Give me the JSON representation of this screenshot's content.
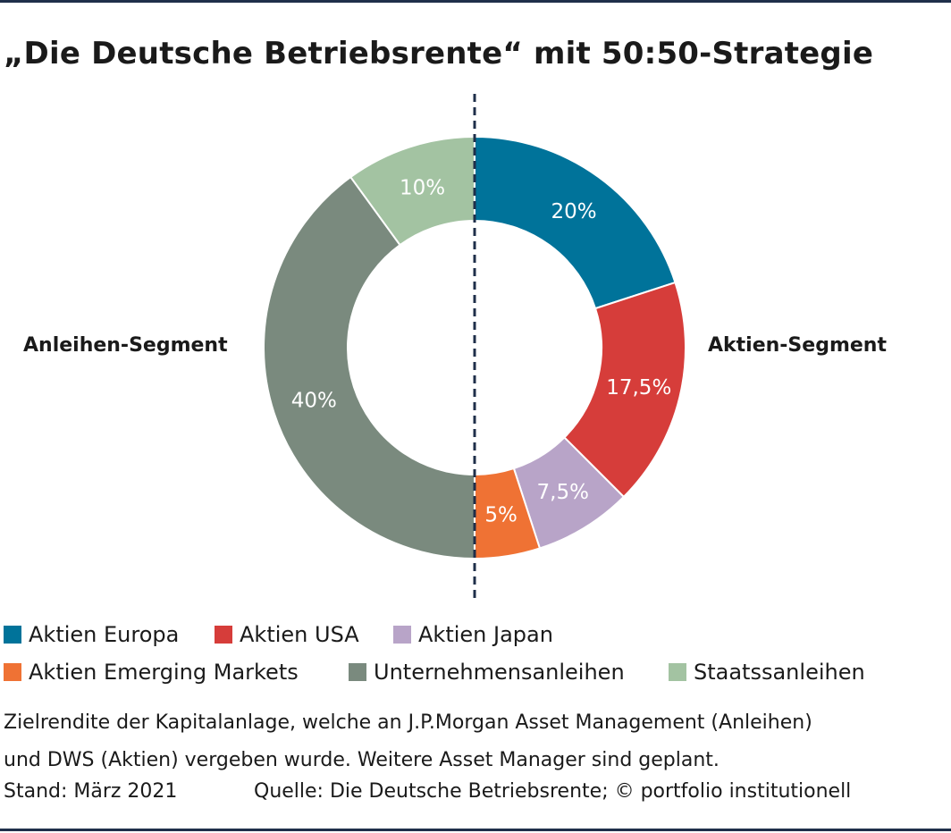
{
  "title": "„Die Deutsche Betriebsrente“ mit 50:50-Strategie",
  "segments": {
    "left": "Anleihen-Segment",
    "right": "Aktien-Segment"
  },
  "chart_data": {
    "type": "pie",
    "donut": true,
    "slices": [
      {
        "name": "Aktien Europa",
        "value": 20,
        "label": "20%",
        "color": "#00739a"
      },
      {
        "name": "Aktien USA",
        "value": 17.5,
        "label": "17,5%",
        "color": "#d63d3a"
      },
      {
        "name": "Aktien Japan",
        "value": 7.5,
        "label": "7,5%",
        "color": "#b8a4c8"
      },
      {
        "name": "Aktien Emerging Markets",
        "value": 5,
        "label": "5%",
        "color": "#ef7234"
      },
      {
        "name": "Unternehmensanleihen",
        "value": 40,
        "label": "40%",
        "color": "#7a8a7e"
      },
      {
        "name": "Staatssanleihen",
        "value": 10,
        "label": "10%",
        "color": "#a3c3a2"
      }
    ],
    "legend_position": "bottom",
    "divider": "vertical dashed line at 50:50"
  },
  "note": {
    "line1": "Zielrendite der Kapitalanlage, welche an J.P.Morgan Asset Management (Anleihen)",
    "line2": "und DWS (Aktien) vergeben wurde. Weitere Asset Manager sind geplant."
  },
  "stand": "Stand: März 2021",
  "source": "Quelle: Die Deutsche Betriebsrente; © portfolio institutionell"
}
